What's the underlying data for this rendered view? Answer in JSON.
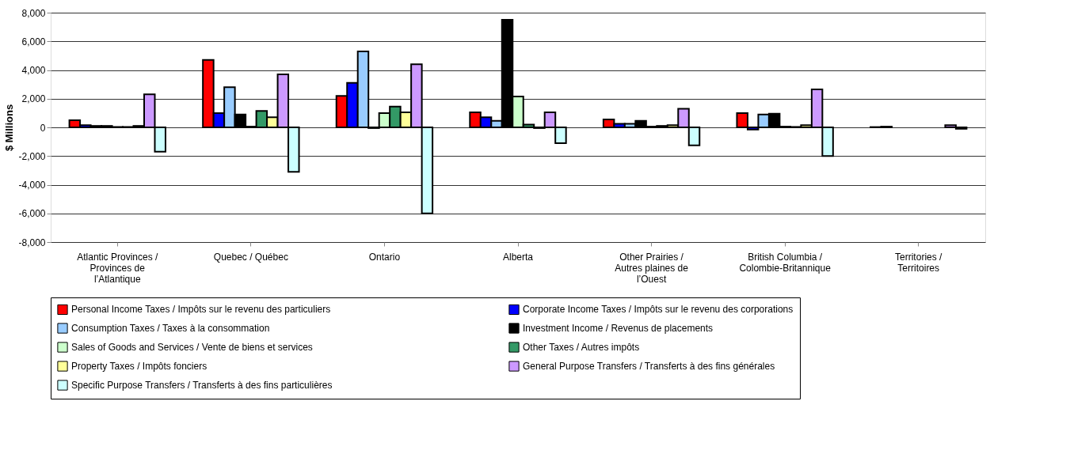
{
  "chart_data": {
    "type": "bar",
    "ylabel": "$ Millions",
    "categories": [
      "Atlantic Provinces / Provinces de l’Atlantique",
      "Quebec / Québec",
      "Ontario",
      "Alberta",
      "Other Prairies / Autres plaines de l’Ouest",
      "British Columbia / Colombie-Britannique",
      "Territories / Territoires"
    ],
    "series": [
      {
        "name": "Personal Income Taxes / Impôts sur le revenu des particuliers",
        "color": "#ff0000",
        "values": [
          500,
          4700,
          2200,
          1050,
          550,
          1000,
          20
        ]
      },
      {
        "name": "Corporate Income Taxes / Impôts sur le revenu des corporations",
        "color": "#0000ff",
        "values": [
          150,
          1000,
          3100,
          700,
          250,
          -150,
          50
        ]
      },
      {
        "name": "Consumption Taxes / Taxes à la consommation",
        "color": "#99ccff",
        "values": [
          100,
          2800,
          5300,
          450,
          250,
          900,
          null
        ]
      },
      {
        "name": "Investment Income / Revenus de placements",
        "color": "#000000",
        "values": [
          100,
          900,
          -50,
          7500,
          450,
          950,
          null
        ]
      },
      {
        "name": "Sales of Goods and Services / Vente de biens et services",
        "color": "#ccffcc",
        "values": [
          30,
          50,
          1000,
          2150,
          50,
          50,
          null
        ]
      },
      {
        "name": "Other Taxes / Autres impôts",
        "color": "#339966",
        "values": [
          30,
          1150,
          1450,
          200,
          100,
          30,
          null
        ]
      },
      {
        "name": "Property Taxes / Impôts fonciers",
        "color": "#ffff99",
        "values": [
          100,
          700,
          1050,
          -50,
          150,
          150,
          null
        ]
      },
      {
        "name": "General Purpose Transfers / Transferts à des fins générales",
        "color": "#cc99ff",
        "values": [
          2300,
          3700,
          4400,
          1050,
          1300,
          2650,
          150
        ]
      },
      {
        "name": "Specific Purpose Transfers / Transferts à des fins particulières",
        "color": "#ccffff",
        "values": [
          -1700,
          -3100,
          -6000,
          -1100,
          -1250,
          -2000,
          -100
        ]
      }
    ],
    "ylim": [
      -8000,
      8000
    ],
    "yticks": [
      {
        "value": -8000,
        "label": "-8,000"
      },
      {
        "value": -6000,
        "label": "-6,000"
      },
      {
        "value": -4000,
        "label": "-4,000"
      },
      {
        "value": -2000,
        "label": "-2,000"
      },
      {
        "value": 0,
        "label": "0"
      },
      {
        "value": 2000,
        "label": "2,000"
      },
      {
        "value": 4000,
        "label": "4,000"
      },
      {
        "value": 6000,
        "label": "6,000"
      },
      {
        "value": 8000,
        "label": "8,000"
      }
    ],
    "grid": "y",
    "legend": "bottom"
  }
}
